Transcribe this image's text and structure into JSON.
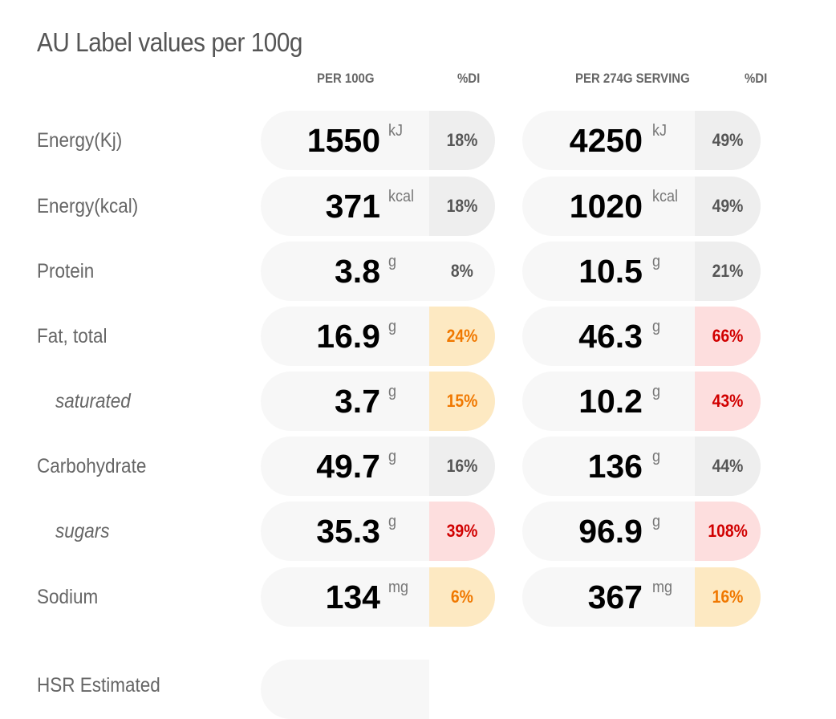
{
  "title": "AU Label values per 100g",
  "headers": {
    "per100": "PER 100G",
    "di1": "%DI",
    "serving": "PER 274G SERVING",
    "di2": "%DI"
  },
  "rows": [
    {
      "label": "Energy(Kj)",
      "v100": "1550",
      "u100": "kJ",
      "p100": "18%",
      "vs": "4250",
      "us": "kJ",
      "ps": "49%"
    },
    {
      "label": "Energy(kcal)",
      "v100": "371",
      "u100": "kcal",
      "p100": "18%",
      "vs": "1020",
      "us": "kcal",
      "ps": "49%"
    },
    {
      "label": "Protein",
      "v100": "3.8",
      "u100": "g",
      "p100": "8%",
      "vs": "10.5",
      "us": "g",
      "ps": "21%"
    },
    {
      "label": "Fat, total",
      "v100": "16.9",
      "u100": "g",
      "p100": "24%",
      "vs": "46.3",
      "us": "g",
      "ps": "66%"
    },
    {
      "label": "saturated",
      "v100": "3.7",
      "u100": "g",
      "p100": "15%",
      "vs": "10.2",
      "us": "g",
      "ps": "43%"
    },
    {
      "label": "Carbohydrate",
      "v100": "49.7",
      "u100": "g",
      "p100": "16%",
      "vs": "136",
      "us": "g",
      "ps": "44%"
    },
    {
      "label": "sugars",
      "v100": "35.3",
      "u100": "g",
      "p100": "39%",
      "vs": "96.9",
      "us": "g",
      "ps": "108%"
    },
    {
      "label": "Sodium",
      "v100": "134",
      "u100": "mg",
      "p100": "6%",
      "vs": "367",
      "us": "mg",
      "ps": "16%"
    }
  ],
  "hsr_label": "HSR Estimated",
  "colors": {
    "grey": "#eeeeee",
    "orange_bg": "#fde9c2",
    "orange_text": "#f07800",
    "red_bg": "#fddede",
    "red_text": "#d10000"
  }
}
